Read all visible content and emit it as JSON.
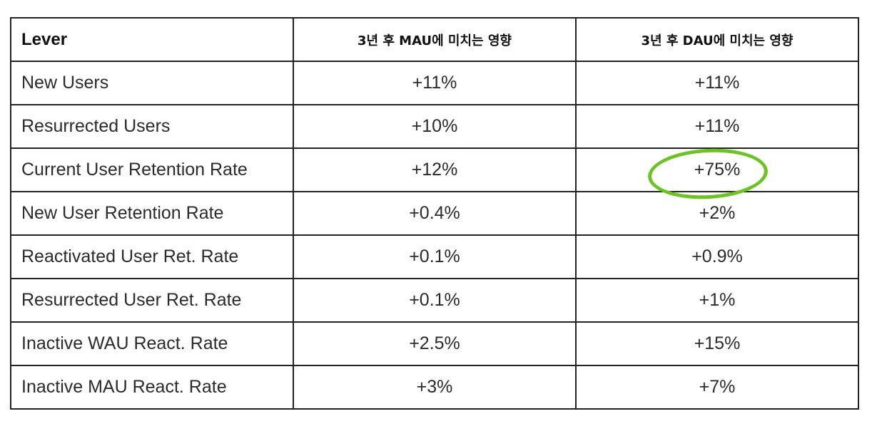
{
  "table": {
    "headers": {
      "lever": "Lever",
      "mau": "3년 후 MAU에 미치는 영향",
      "dau": "3년 후 DAU에 미치는 영향"
    },
    "rows": [
      {
        "lever": "New Users",
        "mau": "+11%",
        "dau": "+11%"
      },
      {
        "lever": "Resurrected Users",
        "mau": "+10%",
        "dau": "+11%"
      },
      {
        "lever": "Current User Retention Rate",
        "mau": "+12%",
        "dau": "+75%"
      },
      {
        "lever": "New User Retention Rate",
        "mau": "+0.4%",
        "dau": "+2%"
      },
      {
        "lever": "Reactivated User Ret. Rate",
        "mau": "+0.1%",
        "dau": "+0.9%"
      },
      {
        "lever": "Resurrected User Ret. Rate",
        "mau": "+0.1%",
        "dau": "+1%"
      },
      {
        "lever": "Inactive WAU React. Rate",
        "mau": "+2.5%",
        "dau": "+15%"
      },
      {
        "lever": "Inactive MAU React. Rate",
        "mau": "+3%",
        "dau": "+7%"
      }
    ]
  },
  "highlight": {
    "color": "#6cc51f",
    "target": "Current User Retention Rate — DAU"
  }
}
